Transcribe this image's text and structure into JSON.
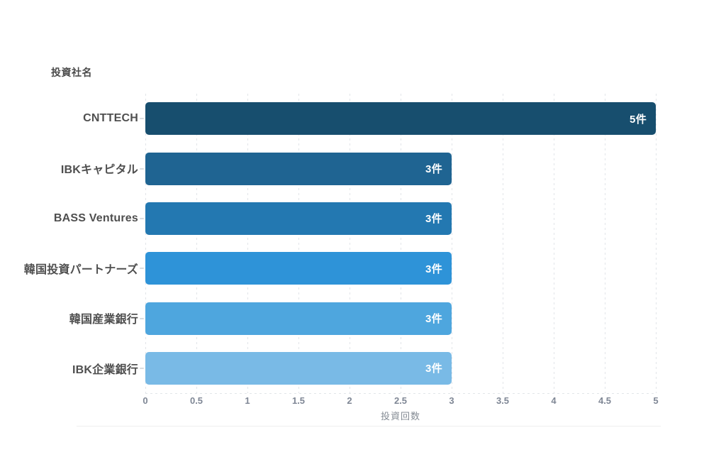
{
  "page": {
    "background": "#ffffff"
  },
  "chart_data": {
    "type": "bar",
    "orientation": "horizontal",
    "title": "投資社名",
    "xlabel": "投資回数",
    "ylabel": "投資社名",
    "categories": [
      "CNTTECH",
      "IBKキャピタル",
      "BASS Ventures",
      "韓国投資パートナーズ",
      "韓国産業銀行",
      "IBK企業銀行"
    ],
    "values": [
      5,
      3,
      3,
      3,
      3,
      3
    ],
    "value_labels": [
      "5件",
      "3件",
      "3件",
      "3件",
      "3件",
      "3件"
    ],
    "bar_colors": [
      "#174e6e",
      "#1f6492",
      "#2378b1",
      "#2e93d8",
      "#4ea6de",
      "#79bae6"
    ],
    "value_label_color": "#ffffff",
    "category_label_color": "#4f4f4f",
    "tick_label_color": "#7f8795",
    "grid": "vertical-dashed",
    "grid_color": "#e2e5e9",
    "divider_color": "#eeeeee",
    "xlim": [
      0,
      5
    ],
    "x_ticks": [
      "0",
      "0.5",
      "1",
      "1.5",
      "2",
      "2.5",
      "3",
      "3.5",
      "4",
      "4.5",
      "5"
    ],
    "legend": "none"
  }
}
